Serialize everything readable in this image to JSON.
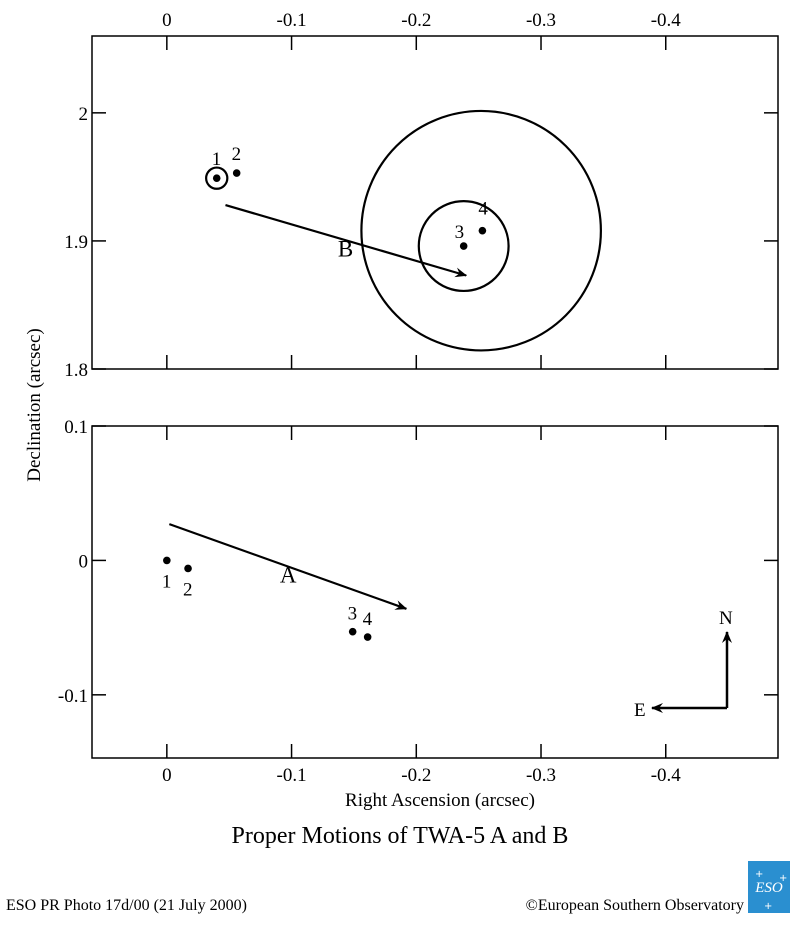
{
  "chart_data": {
    "type": "scatter",
    "title": "Proper Motions of TWA-5 A and B",
    "xlabel": "Right Ascension (arcsec)",
    "ylabel": "Declination (arcsec)",
    "x_ticks": [
      "0",
      "-0.1",
      "-0.2",
      "-0.3",
      "-0.4"
    ],
    "panels": [
      {
        "name": "TWA-5 B",
        "xlim": [
          0.06,
          -0.49
        ],
        "ylim": [
          1.8,
          2.06
        ],
        "y_ticks": [
          "2",
          "1.9",
          "1.8"
        ],
        "y_tick_values": [
          2.0,
          1.9,
          1.8
        ],
        "points": [
          {
            "label": "1",
            "x": -0.04,
            "y": 1.949
          },
          {
            "label": "2",
            "x": -0.056,
            "y": 1.953
          },
          {
            "label": "3",
            "x": -0.238,
            "y": 1.896
          },
          {
            "label": "4",
            "x": -0.253,
            "y": 1.908
          }
        ],
        "arrow": {
          "label": "B",
          "from": [
            -0.047,
            1.928
          ],
          "to": [
            -0.24,
            1.873
          ]
        },
        "circles": [
          {
            "cx": -0.04,
            "cy": 1.949,
            "r": 0.0085
          },
          {
            "cx": -0.238,
            "cy": 1.896,
            "r": 0.036
          },
          {
            "cx": -0.252,
            "cy": 1.908,
            "r": 0.096
          }
        ]
      },
      {
        "name": "TWA-5 A",
        "xlim": [
          0.06,
          -0.49
        ],
        "ylim": [
          -0.147,
          0.1
        ],
        "y_ticks": [
          "0.1",
          "0",
          "-0.1"
        ],
        "y_tick_values": [
          0.1,
          0.0,
          -0.1
        ],
        "points": [
          {
            "label": "1",
            "x": 0.0,
            "y": 0.0
          },
          {
            "label": "2",
            "x": -0.017,
            "y": -0.006
          },
          {
            "label": "3",
            "x": -0.149,
            "y": -0.053
          },
          {
            "label": "4",
            "x": -0.161,
            "y": -0.057
          }
        ],
        "arrow": {
          "label": "A",
          "from": [
            -0.002,
            0.027
          ],
          "to": [
            -0.192,
            -0.036
          ]
        }
      }
    ],
    "compass": {
      "north": "N",
      "east": "E"
    }
  },
  "footer": {
    "credit_left": "ESO PR Photo 17d/00 (21 July 2000)",
    "credit_right": "©European Southern Observatory",
    "logo_text": "ESO"
  }
}
